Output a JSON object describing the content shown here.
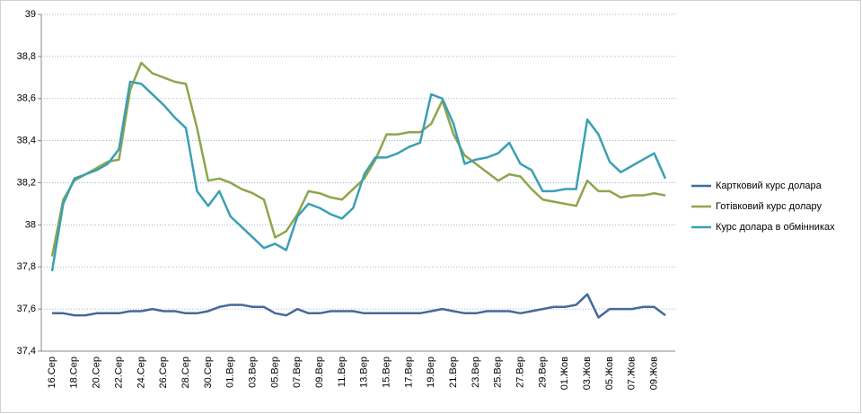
{
  "chart_data": {
    "type": "line",
    "categories": [
      "16.Сер",
      null,
      "18.Сер",
      null,
      "20.Сер",
      null,
      "22.Сер",
      null,
      "24.Сер",
      null,
      "26.Сер",
      null,
      "28.Сер",
      null,
      "30.Сер",
      null,
      "01.Вер",
      null,
      "03.Вер",
      null,
      "05.Вер",
      null,
      "07.Вер",
      null,
      "09.Вер",
      null,
      "11.Вер",
      null,
      "13.Вер",
      null,
      "15.Вер",
      null,
      "17.Вер",
      null,
      "19.Вер",
      null,
      "21.Вер",
      null,
      "23.Вер",
      null,
      "25.Вер",
      null,
      "27.Вер",
      null,
      "29.Вер",
      null,
      "01.Жов",
      null,
      "03.Жов",
      null,
      "05.Жов",
      null,
      "07.Жов",
      null,
      "09.Жов",
      null
    ],
    "series": [
      {
        "name": "Картковий курс долара",
        "color": "#44699b",
        "values": [
          37.58,
          37.58,
          37.57,
          37.57,
          37.58,
          37.58,
          37.58,
          37.59,
          37.59,
          37.6,
          37.59,
          37.59,
          37.58,
          37.58,
          37.59,
          37.61,
          37.62,
          37.62,
          37.61,
          37.61,
          37.58,
          37.57,
          37.6,
          37.58,
          37.58,
          37.59,
          37.59,
          37.59,
          37.58,
          37.58,
          37.58,
          37.58,
          37.58,
          37.58,
          37.59,
          37.6,
          37.59,
          37.58,
          37.58,
          37.59,
          37.59,
          37.59,
          37.58,
          37.59,
          37.6,
          37.61,
          37.61,
          37.62,
          37.67,
          37.56,
          37.6,
          37.6,
          37.6,
          37.61,
          37.61,
          37.57
        ]
      },
      {
        "name": "Готівковий курс долару",
        "color": "#8da64b",
        "values": [
          37.85,
          38.12,
          38.21,
          38.24,
          38.27,
          38.3,
          38.31,
          38.64,
          38.77,
          38.72,
          38.7,
          38.68,
          38.67,
          38.46,
          38.21,
          38.22,
          38.2,
          38.17,
          38.15,
          38.12,
          37.94,
          37.97,
          38.05,
          38.16,
          38.15,
          38.13,
          38.12,
          38.17,
          38.22,
          38.31,
          38.43,
          38.43,
          38.44,
          38.44,
          38.48,
          38.59,
          38.43,
          38.33,
          38.29,
          38.25,
          38.21,
          38.24,
          38.23,
          38.17,
          38.12,
          38.11,
          38.1,
          38.09,
          38.21,
          38.16,
          38.16,
          38.13,
          38.14,
          38.14,
          38.15,
          38.14
        ]
      },
      {
        "name": "Курс долара в обмінниках",
        "color": "#3b9fb4",
        "values": [
          37.78,
          38.1,
          38.22,
          38.24,
          38.26,
          38.29,
          38.36,
          38.68,
          38.67,
          38.62,
          38.57,
          38.51,
          38.46,
          38.16,
          38.09,
          38.16,
          38.04,
          37.99,
          37.94,
          37.89,
          37.91,
          37.88,
          38.04,
          38.1,
          38.08,
          38.05,
          38.03,
          38.08,
          38.24,
          38.32,
          38.32,
          38.34,
          38.37,
          38.39,
          38.62,
          38.6,
          38.48,
          38.29,
          38.31,
          38.32,
          38.34,
          38.39,
          38.29,
          38.26,
          38.16,
          38.16,
          38.17,
          38.17,
          38.5,
          38.43,
          38.3,
          38.25,
          38.28,
          38.31,
          38.34,
          38.22
        ]
      }
    ],
    "ylim": [
      37.4,
      39
    ],
    "yticks": [
      {
        "value": 37.4,
        "label": "37,4"
      },
      {
        "value": 37.6,
        "label": "37,6"
      },
      {
        "value": 37.8,
        "label": "37,8"
      },
      38,
      {
        "value": 38.2,
        "label": "38,2"
      },
      {
        "value": 38.4,
        "label": "38,4"
      },
      {
        "value": 38.6,
        "label": "38,6"
      },
      {
        "value": 38.8,
        "label": "38,8"
      },
      39
    ],
    "grid": true,
    "legend": "right"
  }
}
